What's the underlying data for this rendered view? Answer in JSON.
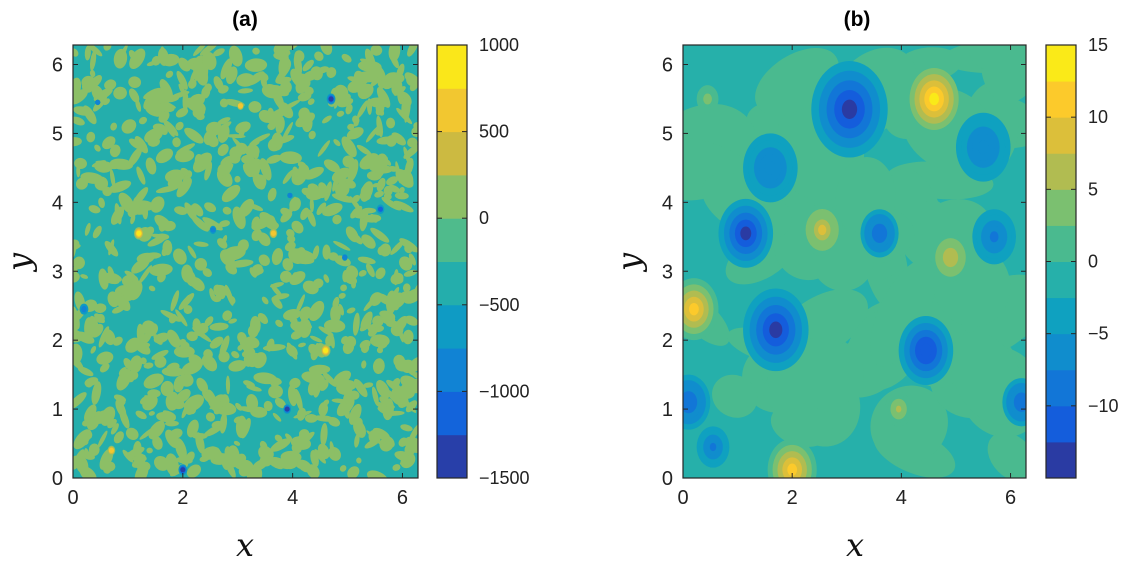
{
  "chart_data": [
    {
      "type": "heatmap",
      "title": "(a)",
      "xlabel": "x",
      "ylabel": "y",
      "xlim": [
        0,
        6.283
      ],
      "ylim": [
        0,
        6.283
      ],
      "xticks": [
        "0",
        "2",
        "4",
        "6"
      ],
      "yticks": [
        "0",
        "1",
        "2",
        "3",
        "4",
        "5",
        "6"
      ],
      "colorbar": {
        "range": [
          -1500,
          1000
        ],
        "ticks": [
          "1000",
          "500",
          "0",
          "−500",
          "−1000",
          "−1500"
        ],
        "tick_values": [
          1000,
          500,
          0,
          -500,
          -1000,
          -1500
        ],
        "colormap": "parula",
        "levels": 10
      },
      "background_levels": [
        -500,
        0
      ],
      "features": [
        {
          "x": 1.2,
          "y": 3.55,
          "value": 950,
          "r": 0.09
        },
        {
          "x": 4.6,
          "y": 1.85,
          "value": 950,
          "r": 0.09
        },
        {
          "x": 3.05,
          "y": 5.4,
          "value": 650,
          "r": 0.06
        },
        {
          "x": 3.65,
          "y": 3.55,
          "value": 700,
          "r": 0.07
        },
        {
          "x": 0.7,
          "y": 0.4,
          "value": 650,
          "r": 0.07
        },
        {
          "x": 4.7,
          "y": 5.5,
          "value": -1400,
          "r": 0.08
        },
        {
          "x": 2.0,
          "y": 0.12,
          "value": -1350,
          "r": 0.08
        },
        {
          "x": 3.9,
          "y": 1.0,
          "value": -1300,
          "r": 0.07
        },
        {
          "x": 0.2,
          "y": 2.45,
          "value": -1000,
          "r": 0.08
        },
        {
          "x": 2.55,
          "y": 3.6,
          "value": -1000,
          "r": 0.06
        },
        {
          "x": 5.6,
          "y": 3.9,
          "value": -1050,
          "r": 0.07
        },
        {
          "x": 4.95,
          "y": 3.2,
          "value": -950,
          "r": 0.05
        },
        {
          "x": 0.45,
          "y": 5.45,
          "value": -900,
          "r": 0.04
        },
        {
          "x": 3.95,
          "y": 4.1,
          "value": -900,
          "r": 0.04
        }
      ]
    },
    {
      "type": "heatmap",
      "title": "(b)",
      "xlabel": "x",
      "ylabel": "y",
      "xlim": [
        0,
        6.283
      ],
      "ylim": [
        0,
        6.283
      ],
      "xticks": [
        "0",
        "2",
        "4",
        "6"
      ],
      "yticks": [
        "0",
        "1",
        "2",
        "3",
        "4",
        "5",
        "6"
      ],
      "colorbar": {
        "range": [
          -15,
          15
        ],
        "ticks": [
          "15",
          "10",
          "5",
          "0",
          "−5",
          "−10"
        ],
        "tick_values": [
          15,
          10,
          5,
          0,
          -5,
          -10
        ],
        "colormap": "parula",
        "levels": 12
      },
      "background_levels": [
        -2.5,
        0
      ],
      "features": [
        {
          "x": 4.6,
          "y": 5.5,
          "value": 13,
          "r": 0.45
        },
        {
          "x": 0.2,
          "y": 2.45,
          "value": 10,
          "r": 0.45
        },
        {
          "x": 2.0,
          "y": 0.12,
          "value": 12,
          "r": 0.45
        },
        {
          "x": 2.55,
          "y": 3.6,
          "value": 8,
          "r": 0.38
        },
        {
          "x": 4.9,
          "y": 3.2,
          "value": 7,
          "r": 0.35
        },
        {
          "x": 3.95,
          "y": 1.0,
          "value": 5,
          "r": 0.25
        },
        {
          "x": 0.45,
          "y": 5.5,
          "value": 4,
          "r": 0.2
        },
        {
          "x": 3.05,
          "y": 5.35,
          "value": -14,
          "r": 0.7
        },
        {
          "x": 1.15,
          "y": 3.55,
          "value": -13,
          "r": 0.5
        },
        {
          "x": 1.7,
          "y": 2.15,
          "value": -13.5,
          "r": 0.6
        },
        {
          "x": 4.45,
          "y": 1.85,
          "value": -12,
          "r": 0.5
        },
        {
          "x": 0.1,
          "y": 1.1,
          "value": -10,
          "r": 0.4
        },
        {
          "x": 6.2,
          "y": 1.1,
          "value": -9,
          "r": 0.35
        },
        {
          "x": 3.6,
          "y": 3.55,
          "value": -9,
          "r": 0.35
        },
        {
          "x": 0.55,
          "y": 0.45,
          "value": -8,
          "r": 0.3
        },
        {
          "x": 5.7,
          "y": 3.5,
          "value": -8,
          "r": 0.4
        },
        {
          "x": 1.6,
          "y": 4.5,
          "value": -7,
          "r": 0.5
        },
        {
          "x": 5.5,
          "y": 4.8,
          "value": -7,
          "r": 0.5
        }
      ]
    }
  ]
}
